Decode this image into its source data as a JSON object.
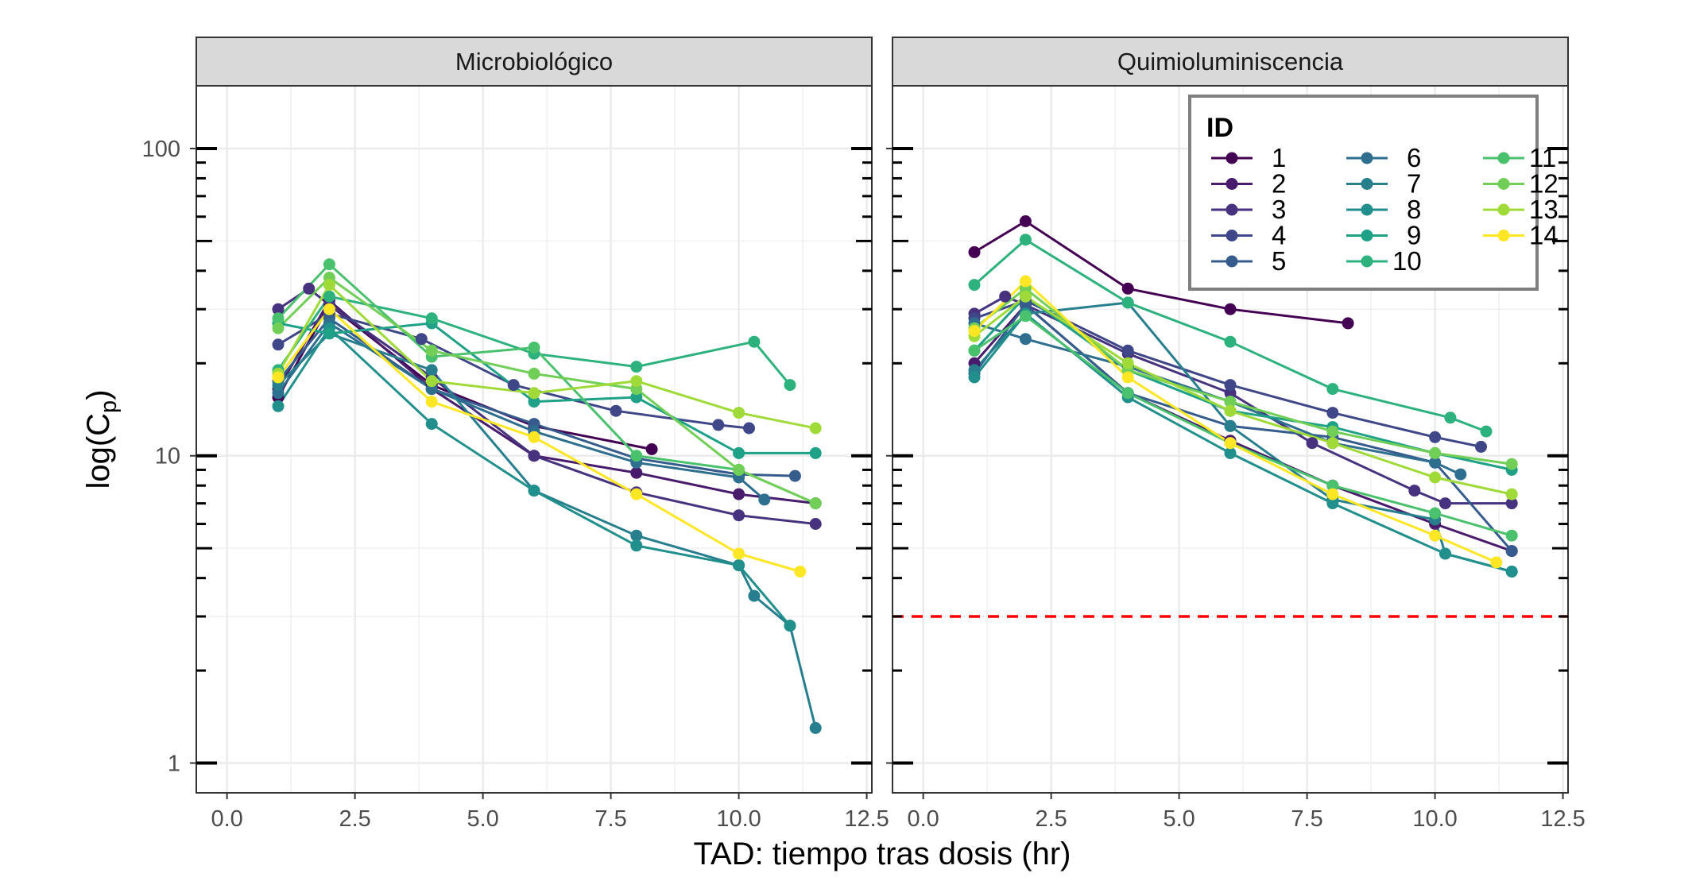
{
  "chart_data": {
    "type": "line",
    "xlabel": "TAD: tiempo tras dosis (hr)",
    "ylabel": "log(C",
    "ylabel_sub": "p",
    "ylabel_close": ")",
    "y_scale": "log10",
    "ylim": [
      0.8,
      160
    ],
    "xlim": [
      -0.6,
      12.6
    ],
    "x_ticks": [
      0.0,
      2.5,
      5.0,
      7.5,
      10.0,
      12.5
    ],
    "x_tick_labels": [
      "0.0",
      "2.5",
      "5.0",
      "7.5",
      "10.0",
      "12.5"
    ],
    "y_ticks": [
      1,
      10,
      100
    ],
    "y_tick_labels": [
      "1",
      "10",
      "100"
    ],
    "grid": true,
    "legend": {
      "title": "ID",
      "placement": "top-right",
      "entries": [
        "1",
        "2",
        "3",
        "4",
        "5",
        "6",
        "7",
        "8",
        "9",
        "10",
        "11",
        "12",
        "13",
        "14"
      ]
    },
    "colors": [
      "#440154",
      "#481B6D",
      "#46327E",
      "#3F4788",
      "#365C8D",
      "#2E6E8E",
      "#277F8E",
      "#21908C",
      "#1FA187",
      "#2DB27D",
      "#4AC16D",
      "#71CF57",
      "#A0DA39",
      "#FDE725"
    ],
    "reference_line": {
      "panel": 1,
      "y": 3,
      "style": "dashed",
      "color": "#FF0000"
    },
    "panels": [
      {
        "title": "Microbiológico",
        "series": [
          {
            "name": "1",
            "points": [
              [
                1,
                15.5
              ],
              [
                2,
                31
              ],
              [
                4,
                17
              ],
              [
                6,
                12.5
              ],
              [
                8.3,
                10.5
              ]
            ]
          },
          {
            "name": "2",
            "points": [
              [
                1,
                16.5
              ],
              [
                2,
                32
              ],
              [
                4,
                16.5
              ],
              [
                6,
                10
              ],
              [
                8,
                8.8
              ],
              [
                10,
                7.5
              ],
              [
                11.5,
                7
              ]
            ]
          },
          {
            "name": "3",
            "points": [
              [
                1,
                30
              ],
              [
                1.6,
                35
              ],
              [
                2,
                31
              ],
              [
                4,
                18
              ],
              [
                6,
                10
              ],
              [
                8,
                7.6
              ],
              [
                10,
                6.4
              ],
              [
                11.5,
                6
              ]
            ]
          },
          {
            "name": "4",
            "points": [
              [
                1,
                23
              ],
              [
                2,
                29
              ],
              [
                3.8,
                24
              ],
              [
                5.6,
                17
              ],
              [
                7.6,
                14
              ],
              [
                9.6,
                12.6
              ],
              [
                10.2,
                12.3
              ]
            ]
          },
          {
            "name": "5",
            "points": [
              [
                1,
                17.5
              ],
              [
                2,
                28
              ],
              [
                4,
                16.5
              ],
              [
                6,
                12.7
              ],
              [
                8,
                9.8
              ],
              [
                10,
                8.7
              ],
              [
                11.1,
                8.6
              ]
            ]
          },
          {
            "name": "6",
            "points": [
              [
                1,
                16
              ],
              [
                2,
                27
              ],
              [
                4,
                16.5
              ],
              [
                6,
                12
              ],
              [
                8,
                9.5
              ],
              [
                10,
                8.5
              ],
              [
                10.5,
                7.2
              ]
            ]
          },
          {
            "name": "7",
            "points": [
              [
                1,
                17
              ],
              [
                2,
                25
              ],
              [
                4,
                19
              ],
              [
                6,
                7.7
              ],
              [
                8,
                5.5
              ],
              [
                10,
                4.4
              ],
              [
                10.3,
                3.5
              ],
              [
                11,
                2.8
              ],
              [
                11.5,
                1.3
              ]
            ]
          },
          {
            "name": "8",
            "points": [
              [
                1,
                14.5
              ],
              [
                2,
                26
              ],
              [
                4,
                12.7
              ],
              [
                6,
                7.7
              ],
              [
                8,
                5.1
              ],
              [
                10,
                4.4
              ],
              [
                11,
                2.8
              ]
            ]
          },
          {
            "name": "9",
            "points": [
              [
                1,
                27
              ],
              [
                2,
                25
              ],
              [
                4,
                27
              ],
              [
                6,
                15
              ],
              [
                8,
                15.5
              ],
              [
                10,
                10.2
              ],
              [
                11.5,
                10.2
              ]
            ]
          },
          {
            "name": "10",
            "points": [
              [
                1,
                19
              ],
              [
                2,
                33
              ],
              [
                4,
                28
              ],
              [
                6,
                21.5
              ],
              [
                8,
                19.5
              ],
              [
                10.3,
                23.5
              ],
              [
                11.0,
                17
              ]
            ]
          },
          {
            "name": "11",
            "points": [
              [
                1,
                28
              ],
              [
                2,
                42
              ],
              [
                4,
                21
              ],
              [
                6,
                22.5
              ],
              [
                8,
                10
              ],
              [
                10,
                9
              ],
              [
                11.5,
                7
              ]
            ]
          },
          {
            "name": "12",
            "points": [
              [
                1,
                26
              ],
              [
                2,
                38
              ],
              [
                4,
                22
              ],
              [
                6,
                18.5
              ],
              [
                8,
                16.5
              ],
              [
                10,
                9
              ],
              [
                11.5,
                7
              ]
            ]
          },
          {
            "name": "13",
            "points": [
              [
                1,
                18.5
              ],
              [
                2,
                36
              ],
              [
                4,
                17.5
              ],
              [
                6,
                16
              ],
              [
                8,
                17.5
              ],
              [
                10,
                13.8
              ],
              [
                11.5,
                12.3
              ]
            ]
          },
          {
            "name": "14",
            "points": [
              [
                1,
                18
              ],
              [
                2,
                30
              ],
              [
                4,
                15
              ],
              [
                6,
                11.5
              ],
              [
                8,
                7.5
              ],
              [
                10,
                4.8
              ],
              [
                11.2,
                4.2
              ]
            ]
          }
        ]
      },
      {
        "title": "Quimioluminiscencia",
        "series": [
          {
            "name": "1",
            "points": [
              [
                1,
                46
              ],
              [
                2,
                58
              ],
              [
                4,
                35
              ],
              [
                6,
                30
              ],
              [
                8.3,
                27
              ]
            ]
          },
          {
            "name": "2",
            "points": [
              [
                1,
                20
              ],
              [
                2,
                31
              ],
              [
                4,
                16
              ],
              [
                6,
                11.2
              ],
              [
                8,
                8
              ],
              [
                10,
                6
              ],
              [
                11.5,
                4.9
              ]
            ]
          },
          {
            "name": "3",
            "points": [
              [
                1,
                29
              ],
              [
                1.6,
                33
              ],
              [
                2,
                31
              ],
              [
                4,
                21.5
              ],
              [
                6,
                16
              ],
              [
                7.6,
                11
              ],
              [
                9.6,
                7.7
              ],
              [
                10.2,
                7
              ],
              [
                11.5,
                7
              ]
            ]
          },
          {
            "name": "4",
            "points": [
              [
                1,
                28
              ],
              [
                2,
                32
              ],
              [
                4,
                22
              ],
              [
                6,
                17
              ],
              [
                8,
                13.8
              ],
              [
                10,
                11.5
              ],
              [
                10.9,
                10.7
              ]
            ]
          },
          {
            "name": "5",
            "points": [
              [
                1,
                18.5
              ],
              [
                2,
                31
              ],
              [
                4,
                16
              ],
              [
                6,
                12.5
              ],
              [
                8,
                11.5
              ],
              [
                10,
                9.5
              ],
              [
                11.5,
                4.9
              ]
            ]
          },
          {
            "name": "6",
            "points": [
              [
                1,
                27
              ],
              [
                2,
                24
              ],
              [
                4,
                19.5
              ],
              [
                6,
                15
              ],
              [
                8,
                11
              ],
              [
                10,
                9.5
              ],
              [
                10.5,
                8.7
              ]
            ]
          },
          {
            "name": "7",
            "points": [
              [
                1,
                19
              ],
              [
                2,
                29
              ],
              [
                4,
                31.5
              ],
              [
                6,
                12.5
              ],
              [
                8,
                7.2
              ],
              [
                10,
                6.2
              ],
              [
                10.2,
                4.8
              ],
              [
                11.5,
                4.2
              ]
            ]
          },
          {
            "name": "8",
            "points": [
              [
                1,
                18
              ],
              [
                2,
                29
              ],
              [
                4,
                15.5
              ],
              [
                6,
                10.2
              ],
              [
                8,
                7
              ],
              [
                10.2,
                4.8
              ],
              [
                11.5,
                4.2
              ]
            ]
          },
          {
            "name": "9",
            "points": [
              [
                1,
                22
              ],
              [
                2,
                33
              ],
              [
                4,
                19
              ],
              [
                6,
                14
              ],
              [
                8,
                12.4
              ],
              [
                10,
                10.2
              ],
              [
                11.5,
                9
              ]
            ]
          },
          {
            "name": "10",
            "points": [
              [
                1,
                36
              ],
              [
                2,
                50.5
              ],
              [
                4,
                31.5
              ],
              [
                6,
                23.5
              ],
              [
                8,
                16.5
              ],
              [
                10.3,
                13.3
              ],
              [
                11.0,
                12
              ]
            ]
          },
          {
            "name": "11",
            "points": [
              [
                1,
                22
              ],
              [
                2,
                28.5
              ],
              [
                4,
                16
              ],
              [
                6,
                11
              ],
              [
                8,
                8
              ],
              [
                10,
                6.5
              ],
              [
                11.5,
                5.5
              ]
            ]
          },
          {
            "name": "12",
            "points": [
              [
                1,
                26
              ],
              [
                2,
                35
              ],
              [
                4,
                19
              ],
              [
                6,
                15
              ],
              [
                8,
                12
              ],
              [
                10,
                10.2
              ],
              [
                11.5,
                9.4
              ]
            ]
          },
          {
            "name": "13",
            "points": [
              [
                1,
                24.5
              ],
              [
                2,
                33
              ],
              [
                4,
                20
              ],
              [
                6,
                14
              ],
              [
                8,
                11
              ],
              [
                10,
                8.5
              ],
              [
                11.5,
                7.5
              ]
            ]
          },
          {
            "name": "14",
            "points": [
              [
                1,
                25.5
              ],
              [
                2,
                37
              ],
              [
                4,
                18
              ],
              [
                6,
                11
              ],
              [
                8,
                7.5
              ],
              [
                10,
                5.5
              ],
              [
                11.2,
                4.5
              ]
            ]
          }
        ]
      }
    ]
  }
}
